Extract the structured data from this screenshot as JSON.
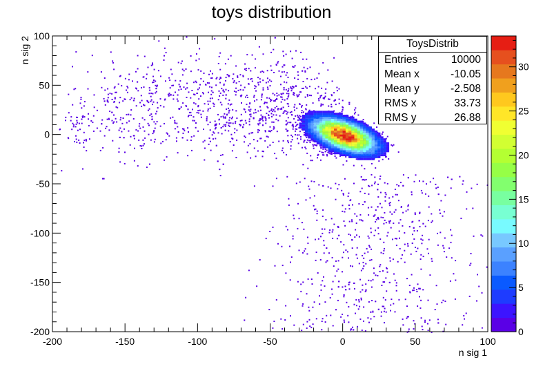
{
  "chart_data": {
    "type": "heatmap",
    "title": "toys distribution",
    "xlabel": "n sig 1",
    "ylabel": "n sig 2",
    "xlim": [
      -200,
      100
    ],
    "ylim": [
      -200,
      100
    ],
    "x_ticks": [
      "-200",
      "-150",
      "-100",
      "-50",
      "0",
      "50",
      "100"
    ],
    "y_ticks": [
      "-200",
      "-150",
      "-100",
      "-50",
      "0",
      "50",
      "100"
    ],
    "z_range": [
      0,
      33.5
    ],
    "z_ticks": [
      "0",
      "5",
      "10",
      "15",
      "20",
      "25",
      "30"
    ],
    "palette": [
      "#5a00e6",
      "#3c14ff",
      "#1e3cff",
      "#0a5aff",
      "#3c82ff",
      "#5aa0ff",
      "#78c8ff",
      "#78faff",
      "#78ffd2",
      "#78ffa0",
      "#82ff6e",
      "#96ff46",
      "#b4ff32",
      "#d2ff32",
      "#f0ff32",
      "#ffe628",
      "#ffc81e",
      "#f0a01e",
      "#e6781e",
      "#e6501e",
      "#e61e14"
    ],
    "point_color": "#5a00e6",
    "peak": {
      "x": 0,
      "y": -2,
      "max_count": 33
    },
    "stats": {
      "name": "ToysDistrib",
      "entries": "10000",
      "mean_x": "-10.05",
      "mean_y": "-2.508",
      "rms_x": "33.73",
      "rms_y": "26.88"
    }
  },
  "stats_labels": {
    "entries": "Entries",
    "mean_x": "Mean x",
    "mean_y": "Mean y",
    "rms_x": "RMS x",
    "rms_y": "RMS y"
  }
}
